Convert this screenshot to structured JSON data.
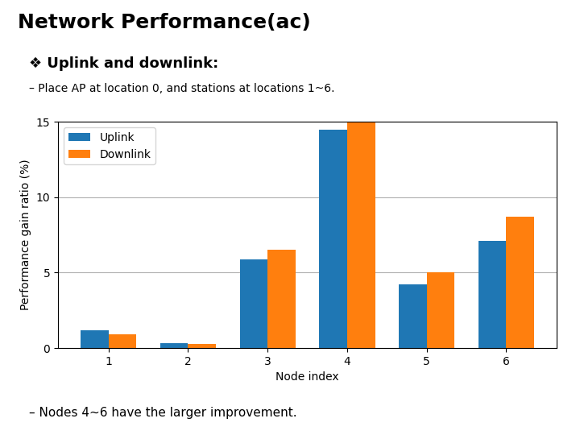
{
  "chart_data": {
    "type": "bar",
    "title": "Network Performance(ac)",
    "annotations": [
      "❖ Uplink and downlink:",
      "– Place AP at location 0, and stations at locations 1~6.",
      "– Nodes 4~6 have the larger improvement."
    ],
    "categories": [
      "1",
      "2",
      "3",
      "4",
      "5",
      "6"
    ],
    "series": [
      {
        "name": "Uplink",
        "values": [
          1.2,
          0.3,
          5.9,
          14.5,
          4.2,
          7.1
        ]
      },
      {
        "name": "Downlink",
        "values": [
          0.9,
          0.25,
          6.5,
          15.0,
          5.0,
          8.7
        ]
      }
    ],
    "xlabel": "Node index",
    "ylabel": "Performance gain ratio (%)",
    "ylim": [
      0,
      15
    ],
    "yticks": [
      0,
      5,
      10,
      15
    ],
    "grid": true,
    "legend": "upper left"
  }
}
